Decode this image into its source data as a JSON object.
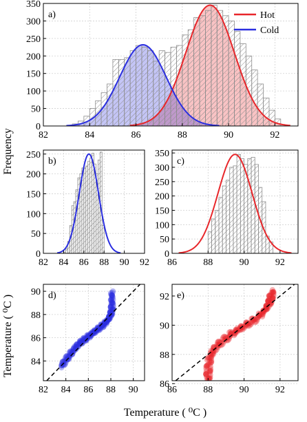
{
  "figure": {
    "ylabel_shared": "Frequency",
    "xlabel_shared": "Temperature ( ⁰C )",
    "ylabel_scatter": "Temperature ( ⁰C )"
  },
  "colors": {
    "hot": "#e8262a",
    "cold": "#2a2ee0",
    "bar_edge": "#8c8c8c",
    "grid": "#d0d0d0"
  },
  "chart_data": [
    {
      "id": "a",
      "panel_label": "a)",
      "type": "bar",
      "xlim": [
        82,
        93
      ],
      "ylim": [
        0,
        350
      ],
      "xticks": [
        82,
        84,
        86,
        88,
        90,
        92
      ],
      "yticks": [
        0,
        50,
        100,
        150,
        200,
        250,
        300,
        350
      ],
      "legend": {
        "position": "top-right",
        "entries": [
          {
            "name": "Hot",
            "color": "#e8262a"
          },
          {
            "name": "Cold",
            "color": "#2a2ee0"
          }
        ]
      },
      "histogram": {
        "bin_start": 83.0,
        "bin_width": 0.25,
        "counts": [
          2,
          6,
          14,
          28,
          50,
          72,
          95,
          120,
          190,
          190,
          195,
          215,
          230,
          225,
          215,
          185,
          215,
          210,
          225,
          230,
          260,
          275,
          310,
          315,
          330,
          345,
          330,
          315,
          300,
          270,
          235,
          200,
          160,
          120,
          80,
          45,
          20
        ]
      },
      "series": [
        {
          "name": "Hot",
          "color": "#e8262a",
          "fit": "gaussian",
          "mean": 89.2,
          "sigma": 1.05,
          "peak": 345
        },
        {
          "name": "Cold",
          "color": "#2a2ee0",
          "fit": "gaussian",
          "mean": 86.3,
          "sigma": 1.0,
          "peak": 232
        }
      ]
    },
    {
      "id": "b",
      "panel_label": "b)",
      "type": "bar",
      "xlim": [
        82,
        92
      ],
      "ylim": [
        0,
        260
      ],
      "xticks": [
        82,
        84,
        86,
        88,
        90,
        92
      ],
      "yticks": [
        0,
        50,
        100,
        150,
        200,
        250
      ],
      "histogram": {
        "bin_start": 84.0,
        "bin_width": 0.2,
        "counts": [
          3,
          12,
          30,
          70,
          120,
          130,
          160,
          190,
          200,
          215,
          215,
          220,
          232,
          240,
          252,
          225,
          200,
          235,
          255,
          70
        ]
      },
      "series": [
        {
          "name": "",
          "color": "#2a2ee0",
          "fit": "gaussian",
          "mean": 86.5,
          "sigma": 0.95,
          "peak": 250
        }
      ]
    },
    {
      "id": "c",
      "panel_label": "c)",
      "type": "bar",
      "xlim": [
        86,
        93
      ],
      "ylim": [
        0,
        360
      ],
      "xticks": [
        86,
        88,
        90,
        92
      ],
      "yticks": [
        0,
        50,
        100,
        150,
        200,
        250,
        300,
        350
      ],
      "histogram": {
        "bin_start": 88.0,
        "bin_width": 0.2,
        "counts": [
          75,
          120,
          150,
          195,
          235,
          255,
          300,
          305,
          345,
          330,
          310,
          330,
          335,
          310,
          230,
          180,
          60,
          40
        ]
      },
      "series": [
        {
          "name": "",
          "color": "#e8262a",
          "fit": "gaussian",
          "mean": 89.5,
          "sigma": 0.95,
          "peak": 345
        }
      ]
    },
    {
      "id": "d",
      "panel_label": "d)",
      "type": "scatter",
      "xlim": [
        82,
        91
      ],
      "ylim": [
        82.3,
        90.6
      ],
      "xticks": [
        82,
        84,
        86,
        88,
        90
      ],
      "yticks": [
        84,
        86,
        88,
        90
      ],
      "color": "#2a2ee0",
      "reference_line": "y = x",
      "x": [
        83.6,
        84.0,
        84.4,
        84.8,
        85.2,
        85.6,
        86.0,
        86.4,
        86.8,
        87.2,
        87.5,
        87.8,
        88.0,
        88.1,
        88.1,
        88.1
      ],
      "y": [
        83.5,
        84.1,
        84.6,
        85.1,
        85.5,
        85.8,
        86.1,
        86.4,
        86.7,
        87.0,
        87.3,
        87.6,
        88.0,
        88.5,
        89.2,
        90.0
      ]
    },
    {
      "id": "e",
      "panel_label": "e)",
      "type": "scatter",
      "xlim": [
        86,
        93
      ],
      "ylim": [
        86.2,
        92.8
      ],
      "xticks": [
        86,
        88,
        90,
        92
      ],
      "yticks": [
        86,
        88,
        90,
        92
      ],
      "color": "#e8262a",
      "reference_line": "y = x",
      "x": [
        88.0,
        88.0,
        88.05,
        88.2,
        88.5,
        88.9,
        89.3,
        89.7,
        90.1,
        90.5,
        90.9,
        91.2,
        91.4,
        91.5,
        91.6
      ],
      "y": [
        86.2,
        86.8,
        87.5,
        88.1,
        88.6,
        89.0,
        89.4,
        89.7,
        90.0,
        90.3,
        90.7,
        91.1,
        91.5,
        91.9,
        92.4
      ]
    }
  ]
}
